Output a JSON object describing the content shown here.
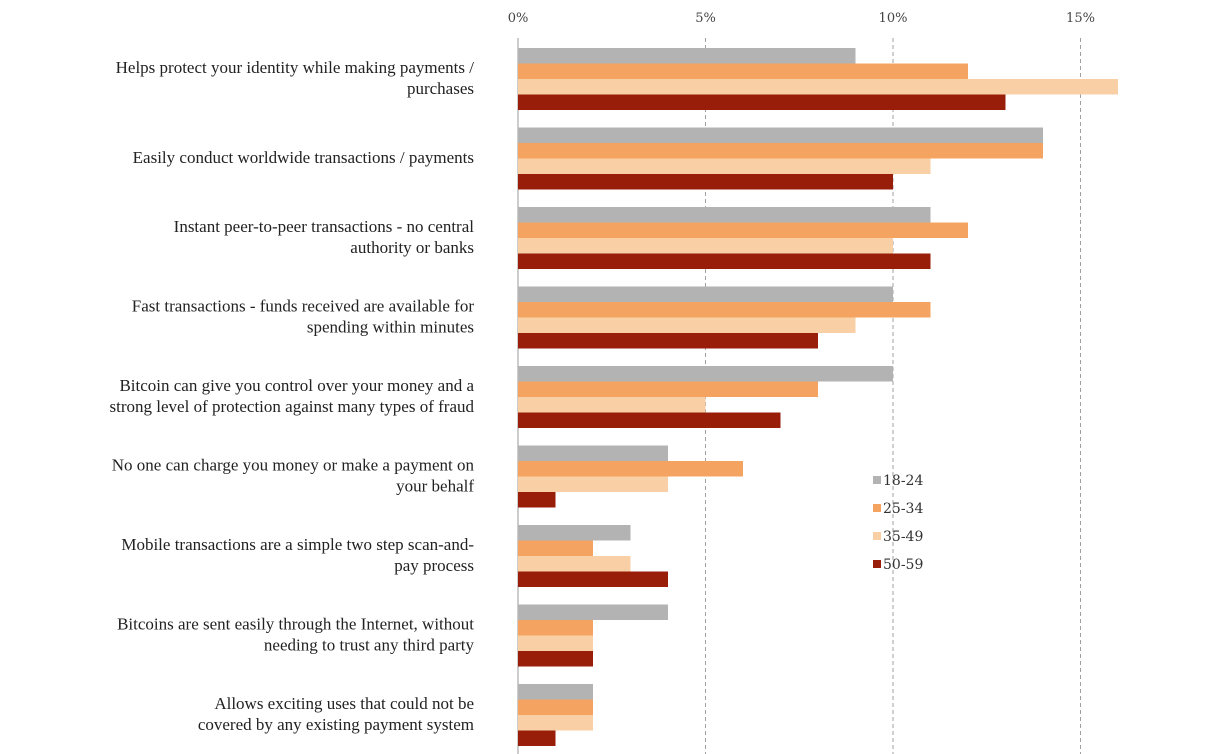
{
  "chart_data": {
    "type": "bar",
    "orientation": "horizontal",
    "categories": [
      [
        "Helps protect your identity while making payments /",
        "purchases"
      ],
      [
        "Easily conduct worldwide transactions / payments"
      ],
      [
        "Instant peer-to-peer transactions - no central",
        "authority or banks"
      ],
      [
        "Fast transactions - funds received are available for",
        "spending within minutes"
      ],
      [
        "Bitcoin can give you control over your money and a",
        "strong level of protection against many types of fraud"
      ],
      [
        "No one can charge you money or make a payment on",
        "your behalf"
      ],
      [
        "Mobile transactions are a simple two step scan-and-",
        "pay process"
      ],
      [
        "Bitcoins are sent easily through the Internet, without",
        "needing to trust any third party"
      ],
      [
        "Allows exciting uses that could not be",
        "covered by any existing payment system"
      ]
    ],
    "series": [
      {
        "name": "18-24",
        "color": "#b3b3b3",
        "values": [
          9,
          14,
          11,
          10,
          10,
          4,
          3,
          4,
          2
        ]
      },
      {
        "name": "25-34",
        "color": "#f4a460",
        "values": [
          12,
          14,
          12,
          11,
          8,
          6,
          2,
          2,
          2
        ]
      },
      {
        "name": "35-49",
        "color": "#f9cfa6",
        "values": [
          16,
          11,
          10,
          9,
          5,
          4,
          3,
          2,
          2
        ]
      },
      {
        "name": "50-59",
        "color": "#981e0a",
        "values": [
          13,
          10,
          11,
          8,
          7,
          1,
          4,
          2,
          1
        ]
      }
    ],
    "ticks": [
      {
        "value": 0,
        "label": "0%"
      },
      {
        "value": 5,
        "label": "5%"
      },
      {
        "value": 10,
        "label": "10%"
      },
      {
        "value": 15,
        "label": "15%"
      }
    ],
    "xlim": [
      0,
      19
    ],
    "grid": "vertical dashed",
    "legend_position": "center-right"
  }
}
